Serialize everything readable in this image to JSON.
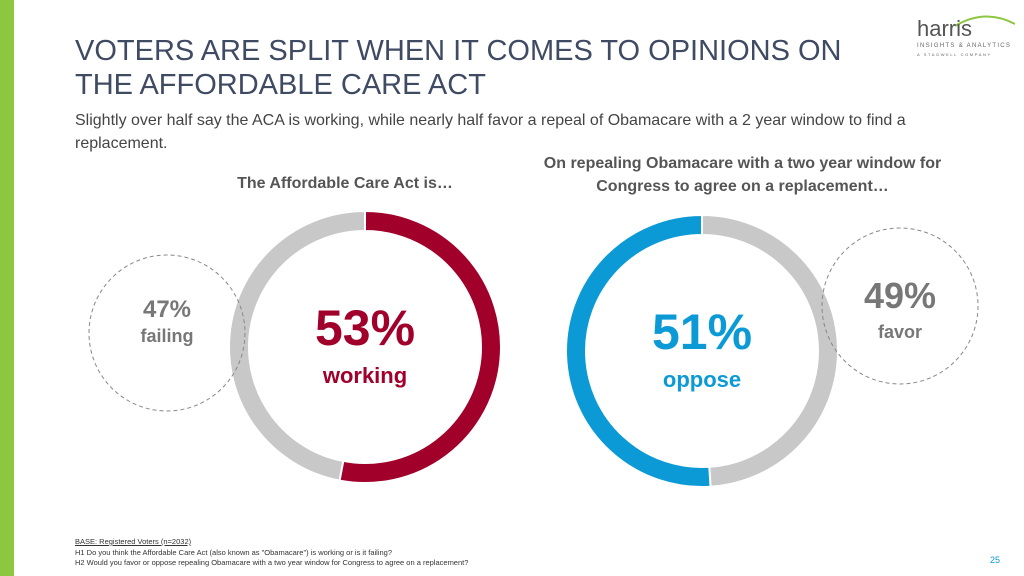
{
  "header": {
    "title": "VOTERS ARE SPLIT WHEN IT COMES TO OPINIONS ON THE AFFORDABLE CARE ACT",
    "subtitle": "Slightly over half say the ACA is working, while nearly half favor a repeal of Obamacare with a 2 year window to find a replacement.",
    "logo": "harris",
    "logo_tagline": "INSIGHTS & ANALYTICS",
    "logo_sub": "A STAGWELL COMPANY"
  },
  "chart_data": [
    {
      "type": "donut",
      "title": "The Affordable Care Act is…",
      "categories": [
        "working",
        "failing"
      ],
      "values": [
        53,
        47
      ],
      "value_labels": [
        "53%",
        "47%"
      ],
      "colors": [
        "#a0002a",
        "#c8c8c8"
      ]
    },
    {
      "type": "donut",
      "title": "On repealing Obamacare with a two year window for Congress to agree on a replacement…",
      "categories": [
        "favor",
        "oppose"
      ],
      "values": [
        49,
        51
      ],
      "value_labels": [
        "49%",
        "51%"
      ],
      "colors": [
        "#c8c8c8",
        "#0b9ad6"
      ]
    }
  ],
  "footer": {
    "notes": [
      "BASE: Registered Voters (n=2032)",
      "H1 Do you think the Affordable Care Act (also known as \"Obamacare\") is working or is it failing?",
      "H2 Would you favor or oppose repealing Obamacare with a two year window for Congress to agree on a replacement?"
    ],
    "page": 25
  }
}
